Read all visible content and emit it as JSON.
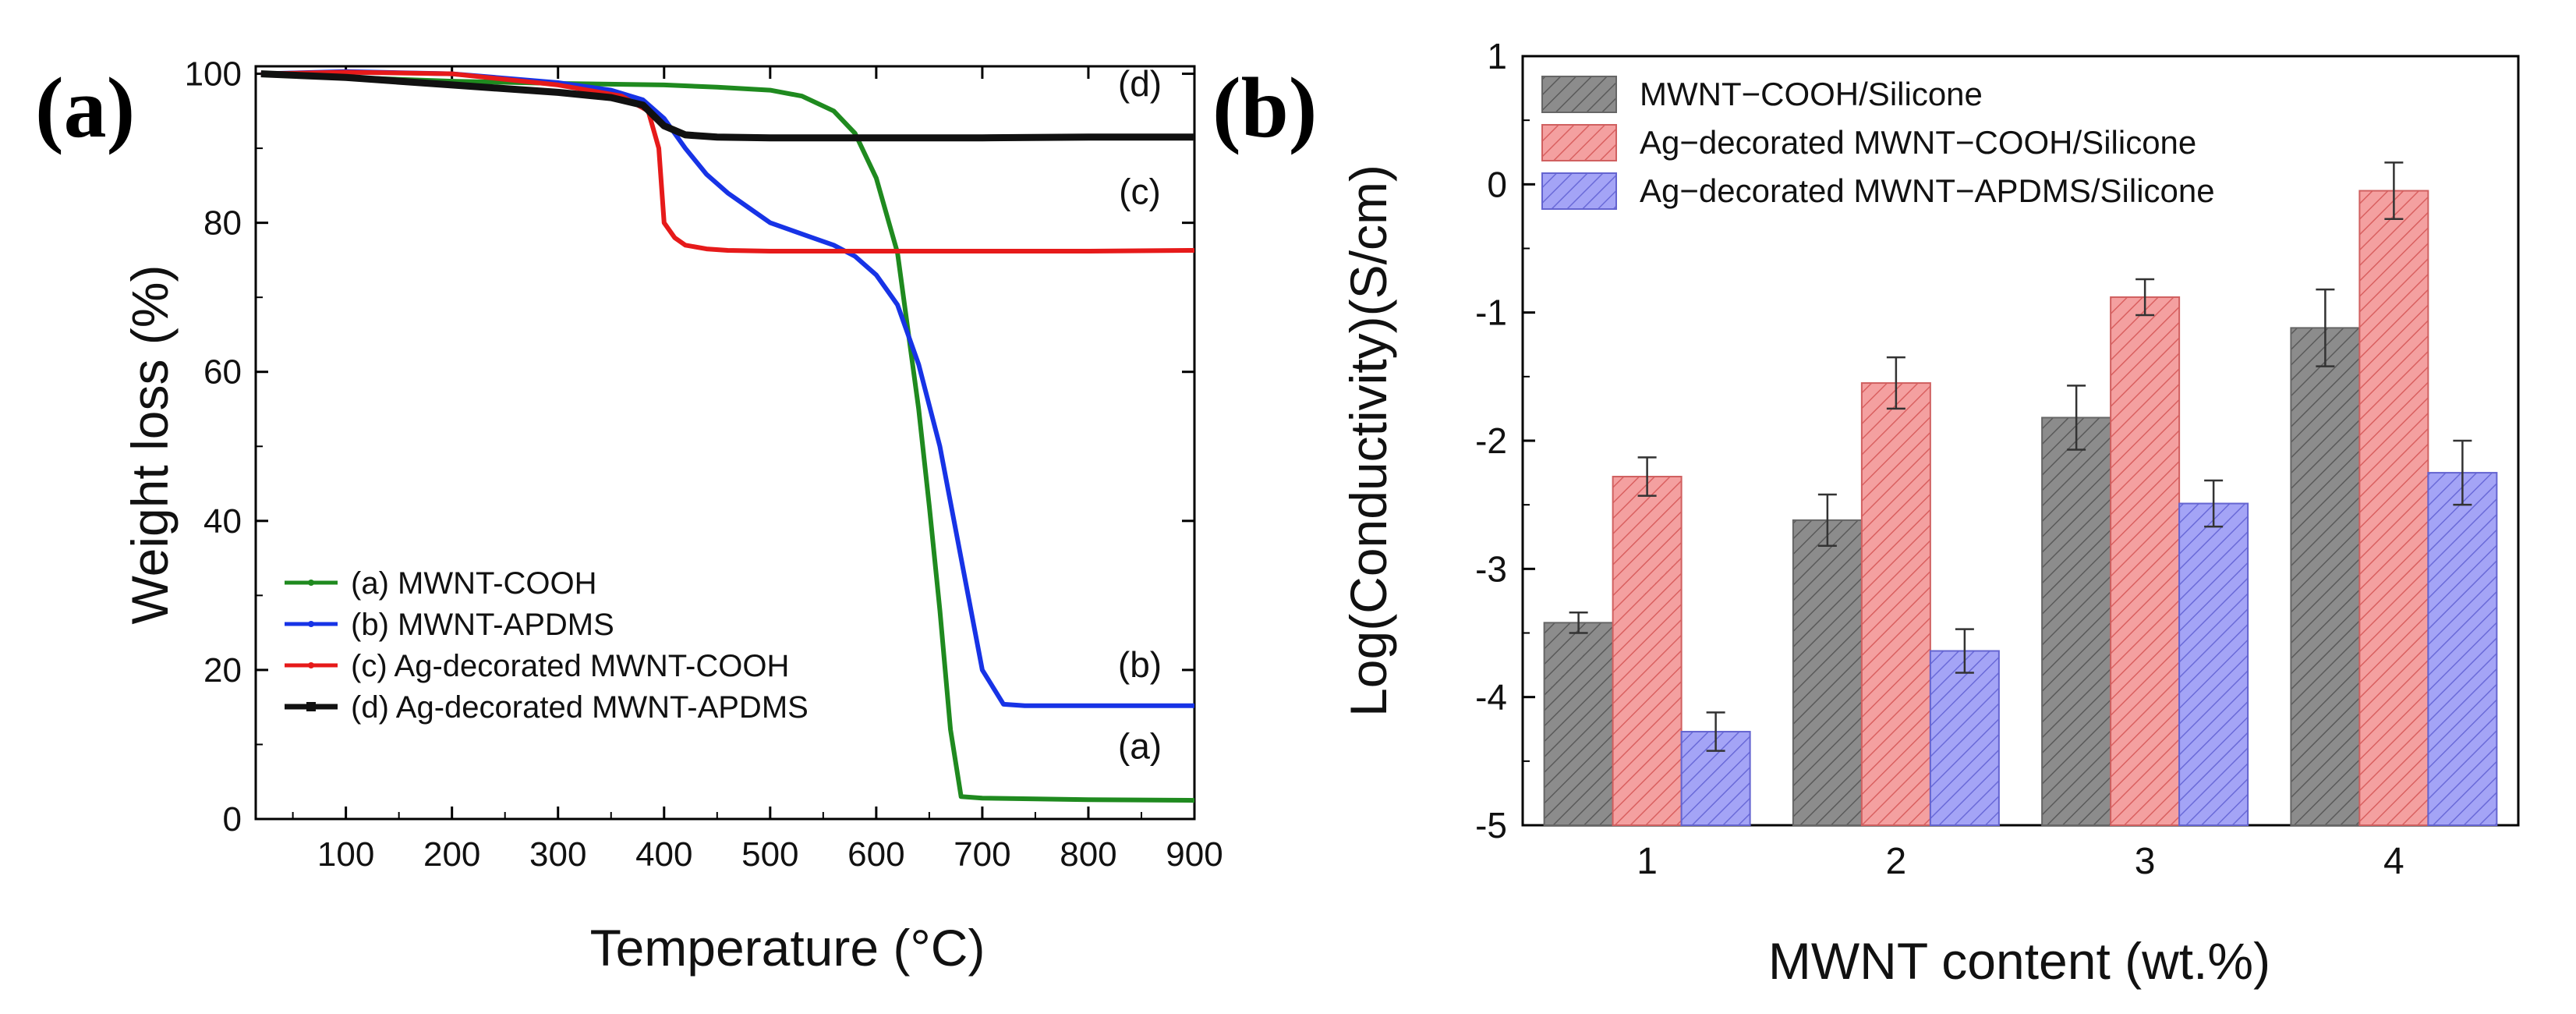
{
  "chart_data": [
    {
      "panel_label": "(a)",
      "type": "line",
      "xlabel": "Temperature (°C)",
      "ylabel": "Weight loss (%)",
      "xlim": [
        15,
        900
      ],
      "ylim": [
        0,
        101
      ],
      "x_ticks": [
        100,
        200,
        300,
        400,
        500,
        600,
        700,
        800,
        900
      ],
      "y_ticks": [
        0,
        20,
        40,
        60,
        80,
        100
      ],
      "legend_position": "bottom-left",
      "series": [
        {
          "name": "(a) MWNT-COOH",
          "label": "(a)",
          "color": "#1f8a1f",
          "x": [
            20,
            100,
            200,
            300,
            400,
            450,
            500,
            530,
            560,
            580,
            600,
            620,
            640,
            650,
            660,
            670,
            680,
            700,
            800,
            900
          ],
          "y": [
            100,
            99.5,
            99,
            98.7,
            98.5,
            98.2,
            97.8,
            97,
            95,
            92,
            86,
            76,
            55,
            42,
            28,
            12,
            3,
            2.8,
            2.6,
            2.5
          ]
        },
        {
          "name": "(b) MWNT-APDMS",
          "label": "(b)",
          "color": "#1733e6",
          "x": [
            20,
            100,
            200,
            300,
            350,
            380,
            400,
            420,
            440,
            460,
            480,
            500,
            520,
            540,
            560,
            580,
            600,
            620,
            640,
            660,
            680,
            700,
            720,
            740,
            800,
            900
          ],
          "y": [
            100,
            100.3,
            100,
            98.8,
            97.8,
            96.5,
            94,
            90,
            86.5,
            84,
            82,
            80,
            79,
            78,
            77,
            75.5,
            73,
            69,
            61,
            50,
            35,
            20,
            15.4,
            15.2,
            15.2,
            15.2
          ]
        },
        {
          "name": "(c) Ag-decorated MWNT-COOH",
          "label": "(c)",
          "color": "#e61a1a",
          "x": [
            20,
            100,
            200,
            300,
            360,
            385,
            395,
            400,
            410,
            420,
            440,
            460,
            500,
            600,
            700,
            800,
            900
          ],
          "y": [
            100,
            100.2,
            100,
            98.5,
            97,
            95,
            90,
            80,
            78,
            77,
            76.5,
            76.3,
            76.2,
            76.2,
            76.2,
            76.2,
            76.3
          ]
        },
        {
          "name": "(d) Ag-decorated MWNT-APDMS",
          "label": "(d)",
          "color": "#111111",
          "x": [
            20,
            100,
            200,
            300,
            350,
            380,
            400,
            420,
            450,
            500,
            600,
            700,
            800,
            900
          ],
          "y": [
            100,
            99.5,
            98.5,
            97.5,
            96.8,
            95.8,
            93,
            91.8,
            91.5,
            91.4,
            91.4,
            91.4,
            91.5,
            91.5
          ]
        }
      ]
    },
    {
      "panel_label": "(b)",
      "type": "bar",
      "xlabel": "MWNT content (wt.%)",
      "ylabel": "Log(Conductivity)(S/cm)",
      "categories": [
        "1",
        "2",
        "3",
        "4"
      ],
      "ylim": [
        -5,
        1
      ],
      "y_ticks": [
        -5,
        -4,
        -3,
        -2,
        -1,
        0,
        1
      ],
      "legend_position": "top-left",
      "series": [
        {
          "name": "MWNT−COOH/Silicone",
          "color": "#8c8c8c",
          "values": [
            -3.42,
            -2.62,
            -1.82,
            -1.12
          ],
          "errors": [
            0.08,
            0.2,
            0.25,
            0.3
          ]
        },
        {
          "name": "Ag−decorated MWNT−COOH/Silicone",
          "color": "#f28c8c",
          "values": [
            -2.28,
            -1.55,
            -0.88,
            -0.05
          ],
          "errors": [
            0.15,
            0.2,
            0.14,
            0.22
          ]
        },
        {
          "name": "Ag−decorated MWNT−APDMS/Silicone",
          "color": "#8c8cf2",
          "values": [
            -4.27,
            -3.64,
            -2.49,
            -2.25
          ],
          "errors": [
            0.15,
            0.17,
            0.18,
            0.25
          ]
        }
      ]
    }
  ]
}
